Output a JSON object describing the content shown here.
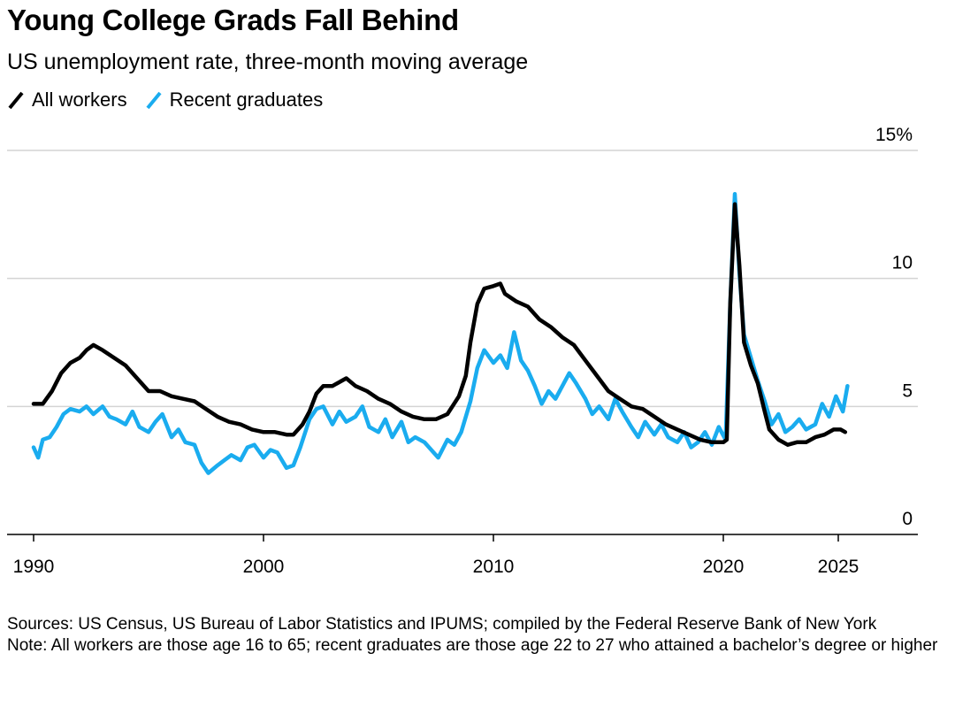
{
  "title": "Young College Grads Fall Behind",
  "subtitle": "US unemployment rate, three-month moving average",
  "legend": [
    {
      "label": "All workers",
      "color": "#000000"
    },
    {
      "label": "Recent graduates",
      "color": "#1AACEF"
    }
  ],
  "footer": {
    "sources": "Sources: US Census, US Bureau of Labor Statistics and IPUMS; compiled by the Federal Reserve Bank of New York",
    "note": "Note: All workers are those age 16 to 65; recent graduates are those age 22 to 27 who attained a bachelor’s degree or higher"
  },
  "chart_data": {
    "type": "line",
    "title": "Young College Grads Fall Behind",
    "subtitle": "US unemployment rate, three-month moving average",
    "xlim": [
      1990,
      2028
    ],
    "ylim": [
      0,
      15
    ],
    "x_ticks": [
      1990,
      2000,
      2010,
      2020,
      2025
    ],
    "y_ticks": [
      {
        "value": 0,
        "label": "0"
      },
      {
        "value": 5,
        "label": "5"
      },
      {
        "value": 10,
        "label": "10"
      },
      {
        "value": 15,
        "label": "15%"
      }
    ],
    "grid": true,
    "legend_position": "top-left",
    "series": [
      {
        "name": "All workers",
        "color": "#000000",
        "points": [
          [
            1990.0,
            5.1
          ],
          [
            1990.4,
            5.1
          ],
          [
            1990.8,
            5.6
          ],
          [
            1991.2,
            6.3
          ],
          [
            1991.6,
            6.7
          ],
          [
            1992.0,
            6.9
          ],
          [
            1992.3,
            7.2
          ],
          [
            1992.6,
            7.4
          ],
          [
            1993.0,
            7.2
          ],
          [
            1993.5,
            6.9
          ],
          [
            1994.0,
            6.6
          ],
          [
            1994.5,
            6.1
          ],
          [
            1995.0,
            5.6
          ],
          [
            1995.5,
            5.6
          ],
          [
            1996.0,
            5.4
          ],
          [
            1996.5,
            5.3
          ],
          [
            1997.0,
            5.2
          ],
          [
            1997.5,
            4.9
          ],
          [
            1998.0,
            4.6
          ],
          [
            1998.5,
            4.4
          ],
          [
            1999.0,
            4.3
          ],
          [
            1999.5,
            4.1
          ],
          [
            2000.0,
            4.0
          ],
          [
            2000.5,
            4.0
          ],
          [
            2001.0,
            3.9
          ],
          [
            2001.3,
            3.9
          ],
          [
            2001.7,
            4.3
          ],
          [
            2002.0,
            4.8
          ],
          [
            2002.3,
            5.5
          ],
          [
            2002.6,
            5.8
          ],
          [
            2003.0,
            5.8
          ],
          [
            2003.4,
            6.0
          ],
          [
            2003.6,
            6.1
          ],
          [
            2004.0,
            5.8
          ],
          [
            2004.5,
            5.6
          ],
          [
            2005.0,
            5.3
          ],
          [
            2005.5,
            5.1
          ],
          [
            2006.0,
            4.8
          ],
          [
            2006.5,
            4.6
          ],
          [
            2007.0,
            4.5
          ],
          [
            2007.5,
            4.5
          ],
          [
            2008.0,
            4.7
          ],
          [
            2008.5,
            5.4
          ],
          [
            2008.8,
            6.2
          ],
          [
            2009.0,
            7.5
          ],
          [
            2009.3,
            9.0
          ],
          [
            2009.6,
            9.6
          ],
          [
            2010.0,
            9.7
          ],
          [
            2010.3,
            9.8
          ],
          [
            2010.5,
            9.4
          ],
          [
            2011.0,
            9.1
          ],
          [
            2011.5,
            8.9
          ],
          [
            2012.0,
            8.4
          ],
          [
            2012.5,
            8.1
          ],
          [
            2013.0,
            7.7
          ],
          [
            2013.5,
            7.4
          ],
          [
            2014.0,
            6.8
          ],
          [
            2014.5,
            6.2
          ],
          [
            2015.0,
            5.6
          ],
          [
            2015.5,
            5.3
          ],
          [
            2016.0,
            5.0
          ],
          [
            2016.5,
            4.9
          ],
          [
            2017.0,
            4.6
          ],
          [
            2017.5,
            4.3
          ],
          [
            2018.0,
            4.1
          ],
          [
            2018.5,
            3.9
          ],
          [
            2019.0,
            3.7
          ],
          [
            2019.5,
            3.6
          ],
          [
            2020.0,
            3.6
          ],
          [
            2020.15,
            3.7
          ],
          [
            2020.3,
            9.0
          ],
          [
            2020.5,
            12.9
          ],
          [
            2020.7,
            10.5
          ],
          [
            2020.9,
            7.5
          ],
          [
            2021.2,
            6.6
          ],
          [
            2021.5,
            5.9
          ],
          [
            2021.8,
            4.8
          ],
          [
            2022.0,
            4.1
          ],
          [
            2022.4,
            3.7
          ],
          [
            2022.8,
            3.5
          ],
          [
            2023.2,
            3.6
          ],
          [
            2023.6,
            3.6
          ],
          [
            2024.0,
            3.8
          ],
          [
            2024.4,
            3.9
          ],
          [
            2024.8,
            4.1
          ],
          [
            2025.1,
            4.1
          ],
          [
            2025.3,
            4.0
          ]
        ]
      },
      {
        "name": "Recent graduates",
        "color": "#1AACEF",
        "points": [
          [
            1990.0,
            3.4
          ],
          [
            1990.2,
            3.0
          ],
          [
            1990.4,
            3.7
          ],
          [
            1990.7,
            3.8
          ],
          [
            1991.0,
            4.2
          ],
          [
            1991.3,
            4.7
          ],
          [
            1991.6,
            4.9
          ],
          [
            1992.0,
            4.8
          ],
          [
            1992.3,
            5.0
          ],
          [
            1992.6,
            4.7
          ],
          [
            1993.0,
            5.0
          ],
          [
            1993.3,
            4.6
          ],
          [
            1993.6,
            4.5
          ],
          [
            1994.0,
            4.3
          ],
          [
            1994.3,
            4.8
          ],
          [
            1994.6,
            4.2
          ],
          [
            1995.0,
            4.0
          ],
          [
            1995.3,
            4.4
          ],
          [
            1995.6,
            4.7
          ],
          [
            1996.0,
            3.8
          ],
          [
            1996.3,
            4.1
          ],
          [
            1996.6,
            3.6
          ],
          [
            1997.0,
            3.5
          ],
          [
            1997.3,
            2.8
          ],
          [
            1997.6,
            2.4
          ],
          [
            1998.0,
            2.7
          ],
          [
            1998.3,
            2.9
          ],
          [
            1998.6,
            3.1
          ],
          [
            1999.0,
            2.9
          ],
          [
            1999.3,
            3.4
          ],
          [
            1999.6,
            3.5
          ],
          [
            2000.0,
            3.0
          ],
          [
            2000.3,
            3.3
          ],
          [
            2000.6,
            3.2
          ],
          [
            2001.0,
            2.6
          ],
          [
            2001.3,
            2.7
          ],
          [
            2001.6,
            3.4
          ],
          [
            2002.0,
            4.5
          ],
          [
            2002.3,
            4.9
          ],
          [
            2002.6,
            5.0
          ],
          [
            2003.0,
            4.3
          ],
          [
            2003.3,
            4.8
          ],
          [
            2003.6,
            4.4
          ],
          [
            2004.0,
            4.6
          ],
          [
            2004.3,
            5.0
          ],
          [
            2004.6,
            4.2
          ],
          [
            2005.0,
            4.0
          ],
          [
            2005.3,
            4.5
          ],
          [
            2005.6,
            3.8
          ],
          [
            2006.0,
            4.4
          ],
          [
            2006.3,
            3.6
          ],
          [
            2006.6,
            3.8
          ],
          [
            2007.0,
            3.6
          ],
          [
            2007.3,
            3.3
          ],
          [
            2007.6,
            3.0
          ],
          [
            2008.0,
            3.7
          ],
          [
            2008.3,
            3.5
          ],
          [
            2008.6,
            4.0
          ],
          [
            2009.0,
            5.2
          ],
          [
            2009.3,
            6.5
          ],
          [
            2009.6,
            7.2
          ],
          [
            2010.0,
            6.7
          ],
          [
            2010.3,
            7.0
          ],
          [
            2010.6,
            6.5
          ],
          [
            2010.9,
            7.9
          ],
          [
            2011.2,
            6.8
          ],
          [
            2011.5,
            6.4
          ],
          [
            2011.8,
            5.8
          ],
          [
            2012.1,
            5.1
          ],
          [
            2012.4,
            5.6
          ],
          [
            2012.7,
            5.3
          ],
          [
            2013.0,
            5.8
          ],
          [
            2013.3,
            6.3
          ],
          [
            2013.6,
            5.9
          ],
          [
            2014.0,
            5.3
          ],
          [
            2014.3,
            4.7
          ],
          [
            2014.6,
            5.0
          ],
          [
            2015.0,
            4.5
          ],
          [
            2015.3,
            5.3
          ],
          [
            2015.6,
            4.8
          ],
          [
            2016.0,
            4.2
          ],
          [
            2016.3,
            3.8
          ],
          [
            2016.6,
            4.4
          ],
          [
            2017.0,
            3.9
          ],
          [
            2017.3,
            4.3
          ],
          [
            2017.6,
            3.8
          ],
          [
            2018.0,
            3.6
          ],
          [
            2018.3,
            4.0
          ],
          [
            2018.6,
            3.4
          ],
          [
            2018.9,
            3.6
          ],
          [
            2019.2,
            4.0
          ],
          [
            2019.5,
            3.5
          ],
          [
            2019.8,
            4.2
          ],
          [
            2020.1,
            3.7
          ],
          [
            2020.3,
            9.0
          ],
          [
            2020.5,
            13.3
          ],
          [
            2020.7,
            10.2
          ],
          [
            2020.9,
            7.8
          ],
          [
            2021.2,
            6.9
          ],
          [
            2021.5,
            6.0
          ],
          [
            2021.8,
            5.2
          ],
          [
            2022.1,
            4.3
          ],
          [
            2022.4,
            4.7
          ],
          [
            2022.7,
            4.0
          ],
          [
            2023.0,
            4.2
          ],
          [
            2023.3,
            4.5
          ],
          [
            2023.6,
            4.1
          ],
          [
            2024.0,
            4.3
          ],
          [
            2024.3,
            5.1
          ],
          [
            2024.6,
            4.6
          ],
          [
            2024.9,
            5.4
          ],
          [
            2025.2,
            4.8
          ],
          [
            2025.4,
            5.8
          ]
        ]
      }
    ]
  }
}
